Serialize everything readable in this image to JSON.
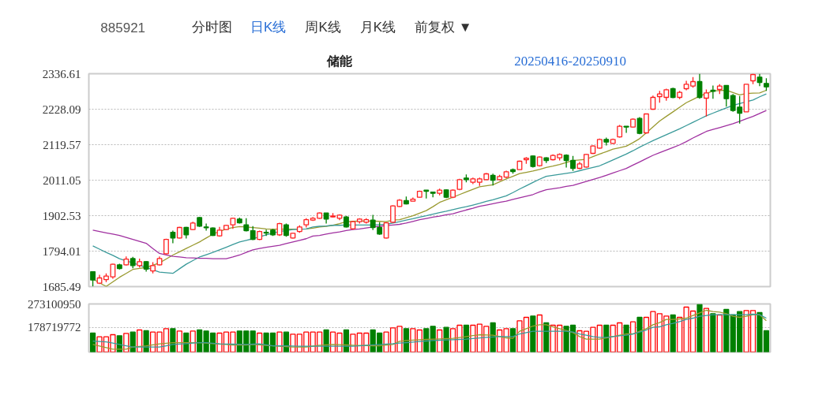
{
  "chart_data": [
    {
      "type": "candlestick",
      "title": "储能",
      "annotations": [
        "885921",
        "分时图",
        "日K线",
        "周K线",
        "月K线",
        "前复权 ▼",
        "20250416-20250910"
      ],
      "categories": [
        null,
        null,
        null,
        null,
        null,
        null,
        null,
        null,
        null,
        null,
        null,
        null,
        null,
        null,
        null,
        null,
        null,
        null,
        null,
        null,
        null,
        null,
        null,
        null,
        null,
        null,
        null,
        null,
        null,
        null,
        null,
        null,
        null,
        null,
        null,
        null,
        null,
        null,
        null,
        null,
        null,
        null,
        null,
        null,
        null,
        null,
        null,
        null,
        null,
        null,
        null,
        null,
        null,
        null,
        null,
        null,
        null,
        null,
        null,
        null,
        null,
        null,
        null,
        null,
        null,
        null,
        null,
        null,
        null,
        null,
        null,
        null,
        null,
        null,
        null,
        null,
        null,
        null,
        null,
        null,
        null,
        null,
        null,
        null,
        null,
        null,
        null,
        null,
        null,
        null,
        null,
        null,
        null,
        null,
        null,
        null,
        null,
        null,
        null,
        null,
        null,
        null
      ],
      "ohlc": [
        [
          1731.2,
          1731.2,
          1686.0,
          1705.5
        ],
        [
          1695.9,
          1721.6,
          1693.4,
          1712.0
        ],
        [
          1707.1,
          1725.6,
          1699.1,
          1717.6
        ],
        [
          1715.1,
          1755.3,
          1709.5,
          1753.7
        ],
        [
          1752.1,
          1755.3,
          1737.7,
          1740.9
        ],
        [
          1752.1,
          1777.9,
          1749.7,
          1769.8
        ],
        [
          1771.4,
          1776.3,
          1741.7,
          1749.7
        ],
        [
          1749.7,
          1771.4,
          1744.1,
          1761.8
        ],
        [
          1761.8,
          1763.4,
          1731.2,
          1739.2
        ],
        [
          1733.6,
          1760.2,
          1725.6,
          1749.7
        ],
        [
          1752.1,
          1777.9,
          1749.7,
          1771.4
        ],
        [
          1785.9,
          1831.7,
          1784.3,
          1830.1
        ],
        [
          1851.8,
          1856.6,
          1818.0,
          1834.2
        ],
        [
          1834.2,
          1867.9,
          1832.5,
          1866.3
        ],
        [
          1866.3,
          1867.9,
          1832.5,
          1843.8
        ],
        [
          1859.9,
          1884.0,
          1858.3,
          1879.9
        ],
        [
          1896.8,
          1898.4,
          1867.9,
          1870.3
        ],
        [
          1867.9,
          1878.3,
          1856.6,
          1865.5
        ],
        [
          1864.7,
          1866.3,
          1840.6,
          1842.2
        ],
        [
          1840.6,
          1867.9,
          1838.2,
          1858.3
        ],
        [
          1859.9,
          1874.3,
          1858.3,
          1872.7
        ],
        [
          1874.3,
          1896.8,
          1862.3,
          1894.4
        ],
        [
          1892.0,
          1896.8,
          1878.3,
          1880.7
        ],
        [
          1874.3,
          1894.4,
          1854.2,
          1856.6
        ],
        [
          1856.6,
          1870.3,
          1827.7,
          1830.1
        ],
        [
          1830.1,
          1856.6,
          1827.7,
          1854.2
        ],
        [
          1851.8,
          1859.9,
          1840.6,
          1849.4
        ],
        [
          1858.3,
          1862.3,
          1840.6,
          1843.8
        ],
        [
          1843.8,
          1880.7,
          1840.6,
          1878.3
        ],
        [
          1874.3,
          1878.3,
          1838.2,
          1842.2
        ],
        [
          1834.2,
          1850.2,
          1832.5,
          1848.6
        ],
        [
          1854.2,
          1872.7,
          1850.2,
          1867.9
        ],
        [
          1874.3,
          1894.4,
          1866.3,
          1890.4
        ],
        [
          1888.8,
          1898.5,
          1886.4,
          1894.4
        ],
        [
          1894.4,
          1912.1,
          1892.8,
          1910.5
        ],
        [
          1910.5,
          1910.5,
          1878.3,
          1892.0
        ],
        [
          1898.5,
          1910.5,
          1896.8,
          1901.7
        ],
        [
          1894.4,
          1906.5,
          1888.8,
          1904.1
        ],
        [
          1898.5,
          1901.7,
          1866.3,
          1867.9
        ],
        [
          1862.3,
          1886.4,
          1859.9,
          1884.0
        ],
        [
          1884.0,
          1894.4,
          1878.3,
          1892.0
        ],
        [
          1882.4,
          1894.4,
          1878.3,
          1890.4
        ],
        [
          1888.8,
          1904.9,
          1858.3,
          1866.3
        ],
        [
          1866.3,
          1882.4,
          1843.8,
          1846.2
        ],
        [
          1834.2,
          1882.4,
          1832.5,
          1880.7
        ],
        [
          1882.4,
          1933.8,
          1880.7,
          1932.2
        ],
        [
          1930.6,
          1953.1,
          1929.0,
          1949.9
        ],
        [
          1948.3,
          1961.1,
          1937.0,
          1938.6
        ],
        [
          1946.7,
          1958.0,
          1946.7,
          1953.1
        ],
        [
          1958.7,
          1978.8,
          1957.1,
          1977.2
        ],
        [
          1980.5,
          1980.5,
          1954.7,
          1977.2
        ],
        [
          1974.8,
          1974.8,
          1958.7,
          1970.8
        ],
        [
          1970.8,
          1985.3,
          1964.4,
          1980.5
        ],
        [
          1981.3,
          1982.9,
          1956.3,
          1958.7
        ],
        [
          1958.7,
          1982.9,
          1956.3,
          1980.5
        ],
        [
          1982.9,
          2015.0,
          1980.5,
          2012.6
        ],
        [
          2017.4,
          2028.7,
          2004.6,
          2012.6
        ],
        [
          2004.6,
          2019.0,
          1998.9,
          2015.0
        ],
        [
          2004.6,
          2019.0,
          1993.3,
          2015.0
        ],
        [
          2012.6,
          2032.7,
          2011.0,
          2030.3
        ],
        [
          2025.5,
          2031.1,
          1994.9,
          2011.0
        ],
        [
          2012.6,
          2027.1,
          2011.0,
          2022.3
        ],
        [
          2020.6,
          2039.9,
          2017.4,
          2036.7
        ],
        [
          2043.2,
          2046.4,
          2031.1,
          2037.5
        ],
        [
          2043.2,
          2070.5,
          2043.2,
          2068.9
        ],
        [
          2073.7,
          2081.8,
          2060.9,
          2078.5
        ],
        [
          2085.0,
          2086.6,
          2049.6,
          2052.8
        ],
        [
          2055.2,
          2083.4,
          2052.8,
          2081.8
        ],
        [
          2079.3,
          2080.9,
          2063.3,
          2071.3
        ],
        [
          2073.7,
          2089.8,
          2071.3,
          2086.6
        ],
        [
          2079.3,
          2093.0,
          2071.3,
          2089.8
        ],
        [
          2087.4,
          2089.8,
          2049.6,
          2071.3
        ],
        [
          2071.3,
          2085.0,
          2039.1,
          2047.2
        ],
        [
          2047.2,
          2067.3,
          2044.8,
          2060.9
        ],
        [
          2051.2,
          2091.4,
          2049.6,
          2089.8
        ],
        [
          2093.0,
          2117.1,
          2091.4,
          2115.5
        ],
        [
          2109.1,
          2138.0,
          2107.5,
          2135.6
        ],
        [
          2135.6,
          2141.2,
          2117.1,
          2127.6
        ],
        [
          2123.6,
          2138.0,
          2121.9,
          2135.6
        ],
        [
          2143.6,
          2179.8,
          2141.2,
          2175.8
        ],
        [
          2175.8,
          2175.8,
          2155.7,
          2173.4
        ],
        [
          2173.4,
          2199.9,
          2171.8,
          2197.5
        ],
        [
          2199.9,
          2204.0,
          2151.7,
          2154.1
        ],
        [
          2155.7,
          2213.6,
          2154.1,
          2213.6
        ],
        [
          2228.1,
          2269.9,
          2226.5,
          2264.3
        ],
        [
          2266.7,
          2284.4,
          2248.2,
          2274.7
        ],
        [
          2264.3,
          2290.8,
          2253.8,
          2287.6
        ],
        [
          2290.8,
          2294.0,
          2261.8,
          2264.3
        ],
        [
          2264.3,
          2284.4,
          2258.6,
          2279.5
        ],
        [
          2290.8,
          2314.9,
          2286.0,
          2304.5
        ],
        [
          2298.8,
          2326.2,
          2294.0,
          2312.5
        ],
        [
          2312.5,
          2336.6,
          2260.2,
          2264.3
        ],
        [
          2261.8,
          2288.4,
          2205.6,
          2277.9
        ],
        [
          2286.0,
          2300.4,
          2260.2,
          2282.8
        ],
        [
          2288.4,
          2304.5,
          2274.7,
          2298.8
        ],
        [
          2300.4,
          2300.4,
          2236.1,
          2260.2
        ],
        [
          2269.9,
          2274.7,
          2220.0,
          2224.1
        ],
        [
          2234.5,
          2268.3,
          2183.9,
          2216.0
        ],
        [
          2220.0,
          2304.5,
          2220.0,
          2304.5
        ],
        [
          2314.9,
          2336.6,
          2304.5,
          2334.2
        ],
        [
          2326.2,
          2336.6,
          2298.8,
          2310.1
        ],
        [
          2306.9,
          2322.9,
          2284.4,
          2296.4
        ]
      ],
      "series": [
        {
          "type": "line",
          "color": "#9a9a30",
          "values": [
            1709,
            1697,
            1686,
            1700,
            1714,
            1726,
            1738,
            1741,
            1744,
            1751,
            1758,
            1770,
            1782,
            1792,
            1802,
            1812,
            1822,
            1834,
            1846,
            1854,
            1862,
            1866,
            1869,
            1868,
            1866,
            1864,
            1862,
            1861,
            1861,
            1861,
            1861,
            1861,
            1862,
            1864,
            1868,
            1870,
            1873,
            1878,
            1884,
            1885,
            1886,
            1886,
            1886,
            1885,
            1884,
            1889,
            1890,
            1896,
            1902,
            1910,
            1918,
            1930,
            1943,
            1951,
            1959,
            1967,
            1975,
            1983,
            1991,
            1994,
            1997,
            2006,
            2015,
            2023,
            2031,
            2035,
            2039,
            2044,
            2050,
            2054,
            2059,
            2065,
            2071,
            2073,
            2075,
            2083,
            2091,
            2098,
            2106,
            2110,
            2115,
            2126,
            2138,
            2156,
            2174,
            2192,
            2206,
            2220,
            2234,
            2248,
            2258,
            2268,
            2276,
            2284,
            2285,
            2286,
            2279,
            2272,
            2276,
            2277,
            2278,
            2286
          ]
        },
        {
          "type": "line",
          "color": "#3a9a9a",
          "values": [
            1810,
            1800,
            1790,
            1781,
            1771,
            1764,
            1758,
            1751,
            1744,
            1737,
            1730,
            1728,
            1726,
            1740,
            1754,
            1765,
            1776,
            1783,
            1790,
            1798,
            1806,
            1814,
            1822,
            1827,
            1832,
            1838,
            1844,
            1849,
            1854,
            1857,
            1860,
            1861,
            1862,
            1868,
            1870,
            1871,
            1873,
            1873,
            1874,
            1874,
            1874,
            1874,
            1874,
            1875,
            1876,
            1880,
            1884,
            1889,
            1893,
            1898,
            1902,
            1907,
            1912,
            1916,
            1921,
            1926,
            1930,
            1935,
            1940,
            1946,
            1951,
            1957,
            1963,
            1973,
            1984,
            1994,
            2004,
            2014,
            2023,
            2026,
            2029,
            2032,
            2035,
            2040,
            2045,
            2050,
            2055,
            2064,
            2073,
            2082,
            2091,
            2101,
            2112,
            2122,
            2132,
            2141,
            2150,
            2159,
            2168,
            2178,
            2188,
            2198,
            2208,
            2216,
            2224,
            2232,
            2240,
            2245,
            2251,
            2256,
            2266,
            2275
          ]
        },
        {
          "type": "line",
          "color": "#a030a0",
          "values": [
            1858,
            1854,
            1850,
            1846,
            1842,
            1836,
            1830,
            1824,
            1818,
            1802,
            1787,
            1782,
            1778,
            1776,
            1774,
            1773,
            1772,
            1772,
            1771,
            1771,
            1771,
            1776,
            1782,
            1790,
            1798,
            1802,
            1806,
            1809,
            1812,
            1817,
            1822,
            1827,
            1832,
            1840,
            1842,
            1846,
            1850,
            1853,
            1857,
            1860,
            1862,
            1865,
            1868,
            1870,
            1872,
            1874,
            1876,
            1880,
            1885,
            1890,
            1894,
            1898,
            1901,
            1905,
            1908,
            1914,
            1920,
            1925,
            1931,
            1935,
            1939,
            1943,
            1947,
            1952,
            1957,
            1962,
            1967,
            1975,
            1982,
            1985,
            1988,
            1992,
            1995,
            2001,
            2007,
            2013,
            2019,
            2026,
            2033,
            2040,
            2047,
            2057,
            2067,
            2077,
            2087,
            2095,
            2103,
            2111,
            2119,
            2129,
            2140,
            2150,
            2160,
            2166,
            2172,
            2178,
            2184,
            2191,
            2199,
            2206,
            2215,
            2224
          ]
        }
      ],
      "ylim": [
        1685.49,
        2336.61
      ],
      "yticks": [
        1685.49,
        1794.01,
        1902.53,
        2011.05,
        2119.57,
        2228.09,
        2336.61
      ],
      "grid": "y"
    },
    {
      "type": "bar",
      "categories": [
        null,
        null,
        null,
        null,
        null,
        null,
        null,
        null,
        null,
        null,
        null,
        null,
        null,
        null,
        null,
        null,
        null,
        null,
        null,
        null,
        null,
        null,
        null,
        null,
        null,
        null,
        null,
        null,
        null,
        null,
        null,
        null,
        null,
        null,
        null,
        null,
        null,
        null,
        null,
        null,
        null,
        null,
        null,
        null,
        null,
        null,
        null,
        null,
        null,
        null,
        null,
        null,
        null,
        null,
        null,
        null,
        null,
        null,
        null,
        null,
        null,
        null,
        null,
        null,
        null,
        null,
        null,
        null,
        null,
        null,
        null,
        null,
        null,
        null,
        null,
        null,
        null,
        null,
        null,
        null,
        null,
        null,
        null,
        null,
        null,
        null,
        null,
        null,
        null,
        null,
        null,
        null,
        null,
        null,
        null,
        null,
        null,
        null,
        null,
        null,
        null,
        null
      ],
      "values": [
        154700000,
        139800000,
        139800000,
        148300000,
        144100000,
        153700000,
        159000000,
        167500000,
        164300000,
        159000000,
        159000000,
        172900000,
        172900000,
        163300000,
        154700000,
        163300000,
        167500000,
        163300000,
        154700000,
        154700000,
        159000000,
        159000000,
        163300000,
        163300000,
        163300000,
        154700000,
        154700000,
        154700000,
        159000000,
        159000000,
        150500000,
        150500000,
        159000000,
        159000000,
        159000000,
        167500000,
        159000000,
        154700000,
        167500000,
        150500000,
        154700000,
        154700000,
        167500000,
        154700000,
        159000000,
        176100000,
        182500000,
        172900000,
        172900000,
        167500000,
        172900000,
        182500000,
        167500000,
        178200000,
        172900000,
        186700000,
        186700000,
        186700000,
        191000000,
        182500000,
        196300000,
        167500000,
        172900000,
        172900000,
        204800000,
        218700000,
        224000000,
        228300000,
        196300000,
        186700000,
        186700000,
        182500000,
        186700000,
        164300000,
        162200000,
        178200000,
        186700000,
        186700000,
        186700000,
        196300000,
        186700000,
        200600000,
        218700000,
        218700000,
        242200000,
        233600000,
        224000000,
        228300000,
        218700000,
        260300000,
        244300000,
        271000000,
        255000000,
        233600000,
        228300000,
        250700000,
        228300000,
        242200000,
        246400000,
        246400000,
        237900000,
        164300000
      ],
      "colors": [
        "#008000",
        "#ff0000",
        "#ff0000",
        "#ff0000",
        "#008000",
        "#ff0000",
        "#008000",
        "#ff0000",
        "#008000",
        "#ff0000",
        "#ff0000",
        "#ff0000",
        "#008000",
        "#ff0000",
        "#008000",
        "#ff0000",
        "#008000",
        "#008000",
        "#008000",
        "#ff0000",
        "#ff0000",
        "#ff0000",
        "#008000",
        "#008000",
        "#008000",
        "#ff0000",
        "#008000",
        "#008000",
        "#ff0000",
        "#008000",
        "#ff0000",
        "#ff0000",
        "#ff0000",
        "#ff0000",
        "#ff0000",
        "#008000",
        "#ff0000",
        "#ff0000",
        "#008000",
        "#ff0000",
        "#ff0000",
        "#ff0000",
        "#008000",
        "#008000",
        "#ff0000",
        "#ff0000",
        "#ff0000",
        "#008000",
        "#ff0000",
        "#ff0000",
        "#008000",
        "#008000",
        "#ff0000",
        "#008000",
        "#ff0000",
        "#ff0000",
        "#008000",
        "#ff0000",
        "#ff0000",
        "#ff0000",
        "#008000",
        "#ff0000",
        "#ff0000",
        "#008000",
        "#ff0000",
        "#ff0000",
        "#008000",
        "#ff0000",
        "#008000",
        "#ff0000",
        "#ff0000",
        "#008000",
        "#008000",
        "#ff0000",
        "#ff0000",
        "#ff0000",
        "#ff0000",
        "#008000",
        "#ff0000",
        "#ff0000",
        "#008000",
        "#ff0000",
        "#008000",
        "#ff0000",
        "#ff0000",
        "#ff0000",
        "#ff0000",
        "#008000",
        "#ff0000",
        "#ff0000",
        "#ff0000",
        "#008000",
        "#ff0000",
        "#008000",
        "#ff0000",
        "#008000",
        "#008000",
        "#008000",
        "#ff0000",
        "#ff0000",
        "#008000",
        "#008000"
      ],
      "series": [
        {
          "type": "line",
          "color": "#9a9a30",
          "values": [
            108900000,
            102500000,
            96100000,
            89700000,
            89700000,
            89700000,
            98200000,
            100900000,
            103500000,
            107300000,
            111000000,
            113700000,
            116300000,
            116300000,
            116300000,
            116300000,
            116300000,
            114200000,
            112000000,
            110200000,
            108500000,
            106700000,
            106700000,
            106700000,
            108900000,
            107000000,
            105200000,
            103300000,
            101400000,
            99800000,
            98200000,
            98200000,
            98200000,
            102000000,
            105700000,
            107300000,
            108900000,
            107800000,
            106800000,
            105700000,
            105000000,
            104200000,
            103500000,
            103500000,
            106200000,
            108900000,
            121700000,
            124900000,
            126500000,
            128100000,
            129200000,
            130200000,
            131300000,
            132300000,
            133400000,
            137100000,
            140800000,
            144600000,
            148300000,
            147300000,
            146200000,
            140800000,
            135500000,
            133400000,
            162200000,
            172900000,
            183500000,
            188900000,
            188900000,
            180300000,
            172900000,
            165400000,
            156900000,
            140800000,
            130200000,
            130200000,
            130200000,
            135500000,
            140800000,
            146200000,
            151500000,
            151500000,
            162200000,
            172900000,
            188900000,
            197400000,
            210200000,
            210200000,
            212300000,
            215500000,
            226200000,
            236800000,
            247500000,
            242200000,
            240100000,
            233600000,
            223000000,
            218700000,
            223000000,
            229400000,
            229400000,
            204800000
          ]
        },
        {
          "type": "line",
          "color": "#3a9a9a",
          "values": [
            122700000,
            121100000,
            119500000,
            114200000,
            108900000,
            103500000,
            98200000,
            98200000,
            98200000,
            98200000,
            98200000,
            103500000,
            108900000,
            110500000,
            112000000,
            114200000,
            116300000,
            116300000,
            113700000,
            111000000,
            110500000,
            110000000,
            109400000,
            108900000,
            110000000,
            111000000,
            107300000,
            103500000,
            103500000,
            103500000,
            102500000,
            101400000,
            101400000,
            101400000,
            101400000,
            101400000,
            101400000,
            101400000,
            101400000,
            101400000,
            103500000,
            105700000,
            107300000,
            108900000,
            110500000,
            112000000,
            114200000,
            116300000,
            118500000,
            120600000,
            122800000,
            124900000,
            125900000,
            127000000,
            128000000,
            129100000,
            130200000,
            132700000,
            135200000,
            137700000,
            139300000,
            140800000,
            140800000,
            140800000,
            151500000,
            156900000,
            162200000,
            162200000,
            162200000,
            162200000,
            162200000,
            162200000,
            159000000,
            151500000,
            146200000,
            140800000,
            137700000,
            137700000,
            140800000,
            143900000,
            146200000,
            151500000,
            159000000,
            167500000,
            178200000,
            180300000,
            188900000,
            194200000,
            201600000,
            210200000,
            215500000,
            223000000,
            226200000,
            229400000,
            229400000,
            229400000,
            229400000,
            229400000,
            229400000,
            231500000,
            229400000,
            215500000
          ]
        }
      ],
      "ylim": [
        78000000,
        273100950
      ],
      "yticks": [
        178719772,
        273100950
      ],
      "grid": "y"
    }
  ]
}
